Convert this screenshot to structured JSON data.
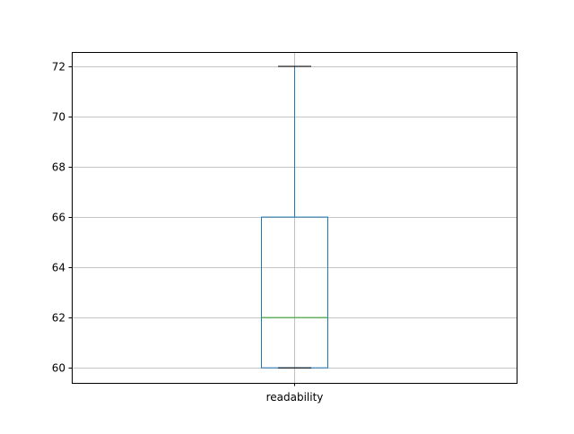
{
  "chart_data": {
    "type": "boxplot",
    "title": "",
    "xlabel": "",
    "ylabel": "",
    "categories": [
      "readability"
    ],
    "boxes": [
      {
        "label": "readability",
        "whisker_low": 60,
        "q1": 60,
        "median": 62,
        "q3": 66,
        "whisker_high": 72
      }
    ],
    "ylim": [
      59.4,
      72.57
    ],
    "yticks": [
      60,
      62,
      64,
      66,
      68,
      70,
      72
    ],
    "grid": true,
    "colors": {
      "box": "#1f77b4",
      "median": "#2ca02c",
      "caps": "#000000",
      "grid": "#b0b0b0"
    }
  }
}
